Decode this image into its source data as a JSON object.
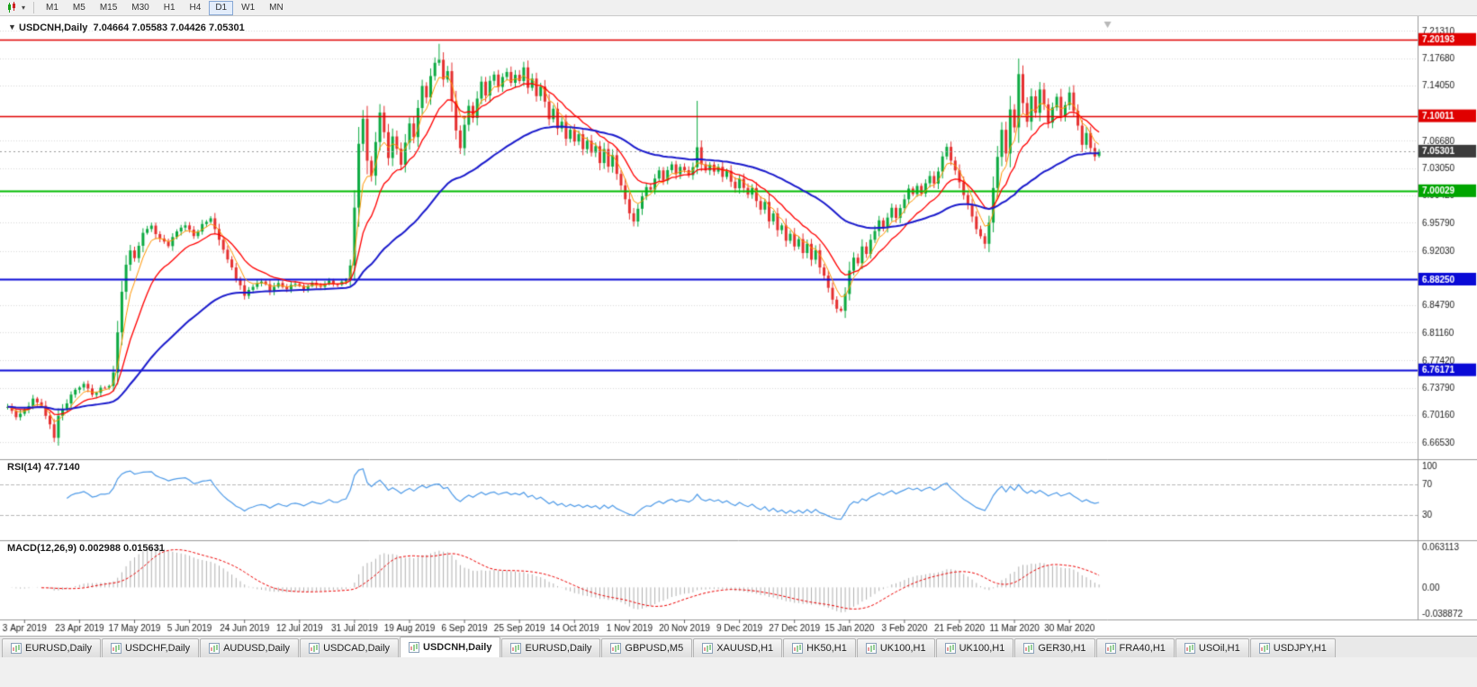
{
  "colors": {
    "chart_bg": "#ffffff",
    "grid": "#d8d8d8",
    "up": "#0caa41",
    "down": "#e53030",
    "axis_line": "#9a9a9a",
    "text": "#1a1a1a"
  },
  "toolbar": {
    "timeframes": [
      "M1",
      "M5",
      "M15",
      "M30",
      "H1",
      "H4",
      "D1",
      "W1",
      "MN"
    ],
    "active": "D1",
    "chart_type_icon": "candlestick-periods-icon"
  },
  "chart": {
    "title_line": "USDCNH,Daily  7.04664 7.05583 7.04426 7.05301",
    "collapse_arrow": "▼"
  },
  "chart_data": {
    "type": "candlestick",
    "symbol": "USDCNH",
    "timeframe": "Daily",
    "current": {
      "open": 7.04664,
      "high": 7.05583,
      "low": 7.04426,
      "close": 7.05301
    },
    "y_max": 7.228,
    "y_min": 6.645,
    "y_gridlines": [
      7.2131,
      7.1768,
      7.1405,
      7.0668,
      7.0305,
      6.9942,
      6.9579,
      6.9203,
      6.8479,
      6.8116,
      6.7742,
      6.7379,
      6.7016,
      6.6653
    ],
    "levels": [
      {
        "price": 7.20193,
        "color": "#e00000",
        "tag": "#e00000",
        "width": 1.5
      },
      {
        "price": 7.10011,
        "color": "#e00000",
        "tag": "#e00000",
        "width": 1.5
      },
      {
        "price": 7.05301,
        "color": "#999999",
        "tag": "#3c3c3c",
        "width": 1,
        "style": "current"
      },
      {
        "price": 7.00029,
        "color": "#00bb00",
        "tag": "#00a500",
        "width": 2
      },
      {
        "price": 6.8825,
        "color": "#0a0ad6",
        "tag": "#0a0ad6",
        "width": 2
      },
      {
        "price": 6.76171,
        "color": "#0a0ad6",
        "tag": "#0a0ad6",
        "width": 2
      }
    ],
    "x_labels": [
      "3 Apr 2019",
      "23 Apr 2019",
      "17 May 2019",
      "5 Jun 2019",
      "24 Jun 2019",
      "12 Jul 2019",
      "31 Jul 2019",
      "19 Aug 2019",
      "6 Sep 2019",
      "25 Sep 2019",
      "14 Oct 2019",
      "1 Nov 2019",
      "20 Nov 2019",
      "9 Dec 2019",
      "27 Dec 2019",
      "15 Jan 2020",
      "3 Feb 2020",
      "21 Feb 2020",
      "11 Mar 2020",
      "30 Mar 2020"
    ],
    "x_label_first_index": 4,
    "x_label_step": 13,
    "ma": [
      {
        "period": 5,
        "color": "#ff9500",
        "width": 1
      },
      {
        "period": 13,
        "color": "#ff0000",
        "width": 1.3
      },
      {
        "period": 50,
        "color": "#1a1acc",
        "width": 2
      }
    ],
    "close_anchors": [
      [
        0,
        6.712
      ],
      [
        2,
        6.7
      ],
      [
        4,
        6.708
      ],
      [
        6,
        6.722
      ],
      [
        8,
        6.712
      ],
      [
        10,
        6.69
      ],
      [
        11,
        6.672
      ],
      [
        12,
        6.7
      ],
      [
        14,
        6.718
      ],
      [
        16,
        6.736
      ],
      [
        18,
        6.744
      ],
      [
        20,
        6.728
      ],
      [
        22,
        6.736
      ],
      [
        24,
        6.742
      ],
      [
        25,
        6.758
      ],
      [
        26,
        6.812
      ],
      [
        27,
        6.866
      ],
      [
        28,
        6.902
      ],
      [
        29,
        6.92
      ],
      [
        30,
        6.91
      ],
      [
        31,
        6.928
      ],
      [
        32,
        6.944
      ],
      [
        34,
        6.952
      ],
      [
        36,
        6.936
      ],
      [
        38,
        6.928
      ],
      [
        40,
        6.946
      ],
      [
        42,
        6.956
      ],
      [
        44,
        6.94
      ],
      [
        46,
        6.954
      ],
      [
        48,
        6.962
      ],
      [
        50,
        6.936
      ],
      [
        52,
        6.91
      ],
      [
        54,
        6.884
      ],
      [
        56,
        6.862
      ],
      [
        58,
        6.872
      ],
      [
        60,
        6.88
      ],
      [
        62,
        6.868
      ],
      [
        64,
        6.876
      ],
      [
        66,
        6.869
      ],
      [
        68,
        6.878
      ],
      [
        70,
        6.871
      ],
      [
        72,
        6.879
      ],
      [
        74,
        6.873
      ],
      [
        76,
        6.88
      ],
      [
        78,
        6.875
      ],
      [
        80,
        6.882
      ],
      [
        81,
        6.902
      ],
      [
        82,
        6.978
      ],
      [
        83,
        7.062
      ],
      [
        84,
        7.096
      ],
      [
        85,
        7.04
      ],
      [
        86,
        7.022
      ],
      [
        87,
        7.066
      ],
      [
        88,
        7.104
      ],
      [
        89,
        7.078
      ],
      [
        90,
        7.044
      ],
      [
        91,
        7.072
      ],
      [
        92,
        7.058
      ],
      [
        93,
        7.034
      ],
      [
        94,
        7.066
      ],
      [
        95,
        7.088
      ],
      [
        96,
        7.072
      ],
      [
        97,
        7.11
      ],
      [
        98,
        7.138
      ],
      [
        99,
        7.124
      ],
      [
        100,
        7.154
      ],
      [
        101,
        7.17
      ],
      [
        102,
        7.176
      ],
      [
        103,
        7.148
      ],
      [
        104,
        7.158
      ],
      [
        105,
        7.118
      ],
      [
        106,
        7.082
      ],
      [
        107,
        7.058
      ],
      [
        108,
        7.088
      ],
      [
        109,
        7.114
      ],
      [
        110,
        7.098
      ],
      [
        111,
        7.124
      ],
      [
        112,
        7.144
      ],
      [
        113,
        7.128
      ],
      [
        114,
        7.148
      ],
      [
        115,
        7.156
      ],
      [
        116,
        7.138
      ],
      [
        117,
        7.15
      ],
      [
        118,
        7.16
      ],
      [
        119,
        7.146
      ],
      [
        120,
        7.156
      ],
      [
        121,
        7.148
      ],
      [
        122,
        7.164
      ],
      [
        123,
        7.138
      ],
      [
        124,
        7.148
      ],
      [
        125,
        7.126
      ],
      [
        126,
        7.138
      ],
      [
        127,
        7.118
      ],
      [
        128,
        7.094
      ],
      [
        129,
        7.108
      ],
      [
        130,
        7.084
      ],
      [
        131,
        7.094
      ],
      [
        132,
        7.068
      ],
      [
        133,
        7.08
      ],
      [
        134,
        7.064
      ],
      [
        135,
        7.074
      ],
      [
        136,
        7.056
      ],
      [
        137,
        7.066
      ],
      [
        138,
        7.05
      ],
      [
        139,
        7.06
      ],
      [
        140,
        7.038
      ],
      [
        141,
        7.054
      ],
      [
        142,
        7.034
      ],
      [
        143,
        7.046
      ],
      [
        144,
        7.022
      ],
      [
        145,
        7.008
      ],
      [
        146,
        6.988
      ],
      [
        147,
        6.972
      ],
      [
        148,
        6.96
      ],
      [
        149,
        6.976
      ],
      [
        150,
        6.994
      ],
      [
        151,
        7.006
      ],
      [
        152,
        7.0
      ],
      [
        153,
        7.016
      ],
      [
        154,
        7.026
      ],
      [
        155,
        7.014
      ],
      [
        156,
        7.028
      ],
      [
        157,
        7.036
      ],
      [
        158,
        7.024
      ],
      [
        159,
        7.034
      ],
      [
        160,
        7.028
      ],
      [
        161,
        7.02
      ],
      [
        162,
        7.03
      ],
      [
        163,
        7.058
      ],
      [
        164,
        7.034
      ],
      [
        165,
        7.026
      ],
      [
        166,
        7.036
      ],
      [
        167,
        7.024
      ],
      [
        168,
        7.034
      ],
      [
        169,
        7.018
      ],
      [
        170,
        7.026
      ],
      [
        171,
        7.014
      ],
      [
        172,
        7.004
      ],
      [
        173,
        7.016
      ],
      [
        174,
        7.006
      ],
      [
        175,
        6.994
      ],
      [
        176,
        7.004
      ],
      [
        177,
        6.986
      ],
      [
        178,
        6.974
      ],
      [
        179,
        6.984
      ],
      [
        180,
        6.96
      ],
      [
        181,
        6.968
      ],
      [
        182,
        6.946
      ],
      [
        183,
        6.956
      ],
      [
        184,
        6.934
      ],
      [
        185,
        6.944
      ],
      [
        186,
        6.926
      ],
      [
        187,
        6.936
      ],
      [
        188,
        6.916
      ],
      [
        189,
        6.928
      ],
      [
        190,
        6.91
      ],
      [
        191,
        6.92
      ],
      [
        192,
        6.898
      ],
      [
        193,
        6.886
      ],
      [
        194,
        6.87
      ],
      [
        195,
        6.856
      ],
      [
        196,
        6.844
      ],
      [
        197,
        6.842
      ],
      [
        198,
        6.864
      ],
      [
        199,
        6.894
      ],
      [
        200,
        6.91
      ],
      [
        201,
        6.904
      ],
      [
        202,
        6.926
      ],
      [
        203,
        6.916
      ],
      [
        204,
        6.934
      ],
      [
        205,
        6.948
      ],
      [
        206,
        6.96
      ],
      [
        207,
        6.95
      ],
      [
        208,
        6.966
      ],
      [
        209,
        6.976
      ],
      [
        210,
        6.964
      ],
      [
        211,
        6.976
      ],
      [
        212,
        6.99
      ],
      [
        213,
        7.004
      ],
      [
        214,
        6.994
      ],
      [
        215,
        7.006
      ],
      [
        216,
        6.996
      ],
      [
        217,
        7.01
      ],
      [
        218,
        7.02
      ],
      [
        219,
        7.01
      ],
      [
        220,
        7.026
      ],
      [
        221,
        7.046
      ],
      [
        222,
        7.06
      ],
      [
        223,
        7.04
      ],
      [
        224,
        7.026
      ],
      [
        225,
        7.01
      ],
      [
        226,
        6.996
      ],
      [
        227,
        6.982
      ],
      [
        228,
        6.966
      ],
      [
        229,
        6.95
      ],
      [
        230,
        6.938
      ],
      [
        231,
        6.93
      ],
      [
        232,
        6.956
      ],
      [
        233,
        7.004
      ],
      [
        234,
        7.046
      ],
      [
        235,
        7.082
      ],
      [
        236,
        7.05
      ],
      [
        237,
        7.11
      ],
      [
        238,
        7.086
      ],
      [
        239,
        7.156
      ],
      [
        240,
        7.116
      ],
      [
        241,
        7.094
      ],
      [
        242,
        7.126
      ],
      [
        243,
        7.106
      ],
      [
        244,
        7.136
      ],
      [
        245,
        7.116
      ],
      [
        246,
        7.09
      ],
      [
        247,
        7.11
      ],
      [
        248,
        7.126
      ],
      [
        249,
        7.1
      ],
      [
        250,
        7.116
      ],
      [
        251,
        7.13
      ],
      [
        252,
        7.106
      ],
      [
        253,
        7.086
      ],
      [
        254,
        7.06
      ],
      [
        255,
        7.076
      ],
      [
        256,
        7.056
      ],
      [
        257,
        7.044
      ],
      [
        258,
        7.053
      ]
    ],
    "high_overrides": [
      [
        102,
        7.196
      ],
      [
        163,
        7.12
      ],
      [
        239,
        7.1765
      ]
    ],
    "low_overrides": [
      [
        11,
        6.6655
      ],
      [
        196,
        6.8385
      ]
    ],
    "rsi": {
      "label": "RSI(14) 47.7140",
      "period": 14,
      "levels": [
        70,
        30
      ],
      "axis_labels": [
        "100",
        "70",
        "30"
      ],
      "color": "#4f9be8"
    },
    "macd": {
      "label": "MACD(12,26,9) 0.002988 0.015631",
      "fast": 12,
      "slow": 26,
      "signal_period": 9,
      "axis_labels": [
        "0.063113",
        "0.00",
        "-0.038872"
      ],
      "hist_color": "#b0b0b0",
      "signal_color": "#ee0000"
    }
  },
  "tabs": [
    {
      "label": "EURUSD,Daily",
      "active": false
    },
    {
      "label": "USDCHF,Daily",
      "active": false
    },
    {
      "label": "AUDUSD,Daily",
      "active": false
    },
    {
      "label": "USDCAD,Daily",
      "active": false
    },
    {
      "label": "USDCNH,Daily",
      "active": true
    },
    {
      "label": "EURUSD,Daily",
      "active": false
    },
    {
      "label": "GBPUSD,M5",
      "active": false
    },
    {
      "label": "XAUUSD,H1",
      "active": false
    },
    {
      "label": "HK50,H1",
      "active": false
    },
    {
      "label": "UK100,H1",
      "active": false
    },
    {
      "label": "UK100,H1",
      "active": false
    },
    {
      "label": "GER30,H1",
      "active": false
    },
    {
      "label": "FRA40,H1",
      "active": false
    },
    {
      "label": "USOil,H1",
      "active": false
    },
    {
      "label": "USDJPY,H1",
      "active": false
    }
  ]
}
